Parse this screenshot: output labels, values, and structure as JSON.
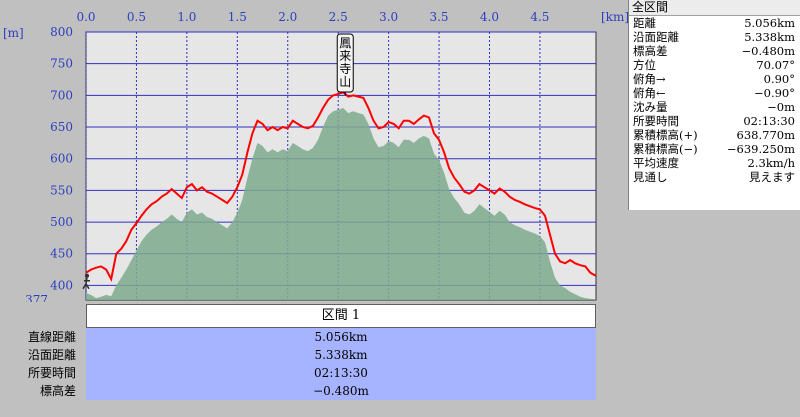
{
  "chart_data": {
    "type": "area",
    "x_unit_label": "[km]",
    "y_unit_label": "[m]",
    "x_ticks": [
      0.0,
      0.5,
      1.0,
      1.5,
      2.0,
      2.5,
      3.0,
      3.5,
      4.0,
      4.5
    ],
    "x_tick_labels": [
      "0.0",
      "0.5",
      "1.0",
      "1.5",
      "2.0",
      "2.5",
      "3.0",
      "3.5",
      "4.0",
      "4.5"
    ],
    "y_ticks": [
      400,
      450,
      500,
      550,
      600,
      650,
      700,
      750,
      800
    ],
    "y_tick_labels": [
      "400",
      "450",
      "500",
      "550",
      "600",
      "650",
      "700",
      "750",
      "800"
    ],
    "y_min_label": "377",
    "xlim": [
      0,
      5.056
    ],
    "ylim": [
      377,
      800
    ],
    "grid": true,
    "annotation": {
      "text": "鳳来寺山",
      "x": 2.57,
      "y": 700
    },
    "series": [
      {
        "style": "red-line",
        "color": "#ff0000",
        "x": [
          0.0,
          0.05,
          0.1,
          0.15,
          0.2,
          0.25,
          0.3,
          0.35,
          0.4,
          0.45,
          0.5,
          0.55,
          0.6,
          0.65,
          0.7,
          0.75,
          0.8,
          0.85,
          0.9,
          0.95,
          1.0,
          1.05,
          1.1,
          1.15,
          1.2,
          1.25,
          1.3,
          1.35,
          1.4,
          1.45,
          1.5,
          1.55,
          1.6,
          1.65,
          1.7,
          1.75,
          1.8,
          1.85,
          1.9,
          1.95,
          2.0,
          2.05,
          2.1,
          2.15,
          2.2,
          2.25,
          2.3,
          2.35,
          2.4,
          2.45,
          2.5,
          2.55,
          2.6,
          2.65,
          2.7,
          2.75,
          2.8,
          2.85,
          2.9,
          2.95,
          3.0,
          3.05,
          3.1,
          3.15,
          3.2,
          3.25,
          3.3,
          3.35,
          3.4,
          3.45,
          3.5,
          3.55,
          3.6,
          3.65,
          3.7,
          3.75,
          3.8,
          3.85,
          3.9,
          3.95,
          4.0,
          4.05,
          4.1,
          4.15,
          4.2,
          4.25,
          4.3,
          4.35,
          4.4,
          4.45,
          4.5,
          4.55,
          4.6,
          4.65,
          4.7,
          4.75,
          4.8,
          4.85,
          4.9,
          4.95,
          5.0,
          5.056
        ],
        "values": [
          420,
          425,
          428,
          430,
          425,
          410,
          450,
          458,
          470,
          488,
          498,
          510,
          520,
          528,
          533,
          540,
          545,
          552,
          545,
          538,
          555,
          560,
          550,
          555,
          548,
          545,
          540,
          535,
          530,
          540,
          555,
          575,
          610,
          640,
          660,
          655,
          645,
          650,
          645,
          650,
          648,
          660,
          655,
          650,
          648,
          652,
          665,
          680,
          693,
          700,
          702,
          705,
          698,
          700,
          698,
          696,
          680,
          660,
          648,
          650,
          658,
          655,
          648,
          660,
          660,
          655,
          662,
          668,
          665,
          640,
          630,
          610,
          585,
          570,
          560,
          548,
          545,
          550,
          560,
          555,
          550,
          545,
          553,
          548,
          540,
          535,
          532,
          528,
          525,
          522,
          520,
          510,
          480,
          450,
          438,
          435,
          440,
          435,
          432,
          430,
          420,
          415
        ]
      },
      {
        "style": "green-area",
        "color": "#7daa8d",
        "x": [
          0.0,
          0.05,
          0.1,
          0.15,
          0.2,
          0.25,
          0.3,
          0.35,
          0.4,
          0.45,
          0.5,
          0.55,
          0.6,
          0.65,
          0.7,
          0.75,
          0.8,
          0.85,
          0.9,
          0.95,
          1.0,
          1.05,
          1.1,
          1.15,
          1.2,
          1.25,
          1.3,
          1.35,
          1.4,
          1.45,
          1.5,
          1.55,
          1.6,
          1.65,
          1.7,
          1.75,
          1.8,
          1.85,
          1.9,
          1.95,
          2.0,
          2.05,
          2.1,
          2.15,
          2.2,
          2.25,
          2.3,
          2.35,
          2.4,
          2.45,
          2.5,
          2.55,
          2.6,
          2.65,
          2.7,
          2.75,
          2.8,
          2.85,
          2.9,
          2.95,
          3.0,
          3.05,
          3.1,
          3.15,
          3.2,
          3.25,
          3.3,
          3.35,
          3.4,
          3.45,
          3.5,
          3.55,
          3.6,
          3.65,
          3.7,
          3.75,
          3.8,
          3.85,
          3.9,
          3.95,
          4.0,
          4.05,
          4.1,
          4.15,
          4.2,
          4.25,
          4.3,
          4.35,
          4.4,
          4.45,
          4.5,
          4.55,
          4.6,
          4.65,
          4.7,
          4.75,
          4.8,
          4.85,
          4.9,
          4.95,
          5.0,
          5.056
        ],
        "values": [
          388,
          385,
          380,
          382,
          385,
          383,
          400,
          412,
          425,
          440,
          455,
          470,
          480,
          488,
          493,
          500,
          505,
          512,
          505,
          500,
          515,
          520,
          512,
          515,
          508,
          505,
          500,
          495,
          490,
          500,
          515,
          535,
          570,
          600,
          625,
          620,
          610,
          615,
          610,
          615,
          612,
          625,
          620,
          615,
          612,
          617,
          630,
          650,
          668,
          675,
          677,
          680,
          672,
          675,
          672,
          670,
          655,
          632,
          618,
          620,
          628,
          625,
          618,
          630,
          630,
          625,
          632,
          636,
          632,
          608,
          598,
          578,
          552,
          538,
          528,
          515,
          512,
          518,
          528,
          522,
          516,
          510,
          518,
          512,
          500,
          495,
          492,
          488,
          485,
          482,
          478,
          468,
          438,
          412,
          400,
          396,
          390,
          386,
          382,
          380,
          379,
          378
        ]
      }
    ]
  },
  "stats": {
    "header": "全区間",
    "rows": [
      {
        "label": "距離",
        "value": "5.056km"
      },
      {
        "label": "沿面距離",
        "value": "5.338km"
      },
      {
        "label": "標高差",
        "value": "−0.480m"
      },
      {
        "label": "方位",
        "value": "70.07°"
      },
      {
        "label": "俯角→",
        "value": "0.90°"
      },
      {
        "label": "俯角←",
        "value": "−0.90°"
      },
      {
        "label": "沈み量",
        "value": "−0m"
      },
      {
        "label": "所要時間",
        "value": "02:13:30"
      },
      {
        "label": "累積標高(+)",
        "value": "638.770m"
      },
      {
        "label": "累積標高(−)",
        "value": "−639.250m"
      },
      {
        "label": "平均速度",
        "value": "2.3km/h"
      },
      {
        "label": "見通し",
        "value": "見えます"
      }
    ]
  },
  "section": {
    "title": "区間 1",
    "rows": [
      {
        "label": "直線距離",
        "value": "5.056km"
      },
      {
        "label": "沿面距離",
        "value": "5.338km"
      },
      {
        "label": "所要時間",
        "value": "02:13:30"
      },
      {
        "label": "標高差",
        "value": "−0.480m"
      }
    ]
  },
  "colors": {
    "grid": "#3030c0",
    "axis_label": "#2b3fbf",
    "plot_bg": "#e6e6e6",
    "line": "#ff0000",
    "area": "#7daa8d",
    "table_body": "#a6b4ff"
  }
}
